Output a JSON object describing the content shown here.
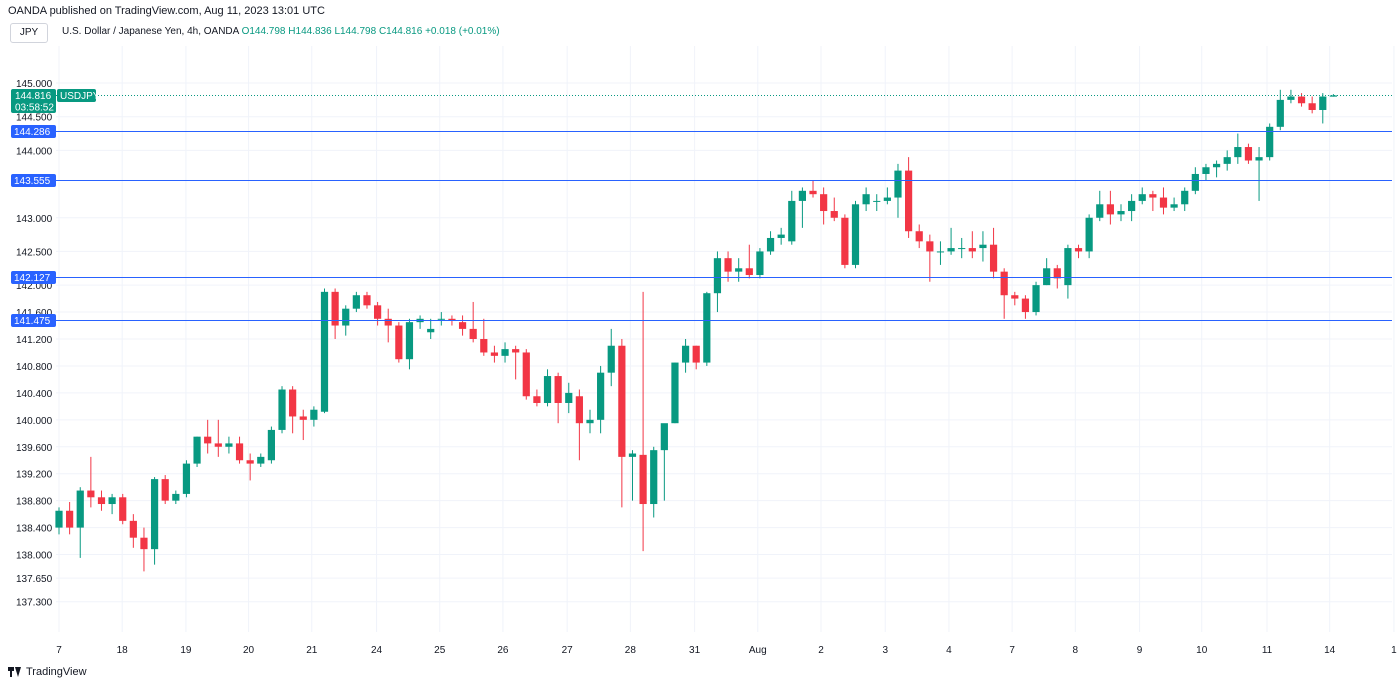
{
  "header": {
    "publisher": "OANDA published on TradingView.com, Aug 11, 2023 13:01 UTC",
    "symbol_button": "JPY",
    "instrument": "U.S. Dollar / Japanese Yen, 4h, OANDA",
    "open": "O144.798",
    "high": "H144.836",
    "low": "L144.798",
    "close": "C144.816",
    "change": "+0.018 (+0.01%)"
  },
  "footer": {
    "brand": "TradingView"
  },
  "colors": {
    "up": "#089981",
    "down": "#f23645",
    "level": "#2962ff",
    "grid": "#f0f3fa"
  },
  "chart_data": {
    "type": "candlestick",
    "title": "",
    "xlabel": "",
    "ylabel": "",
    "grid": true,
    "price_scale": "left",
    "ylim": [
      136.85,
      145.55
    ],
    "y_ticks": [
      "145.000",
      "144.500",
      "144.000",
      "143.000",
      "142.500",
      "142.000",
      "141.600",
      "141.200",
      "140.800",
      "140.400",
      "140.000",
      "139.600",
      "139.200",
      "138.800",
      "138.400",
      "138.000",
      "137.650",
      "137.300"
    ],
    "x_ticks": [
      {
        "label": "7",
        "bar": 0
      },
      {
        "label": "18",
        "bar": 5.95
      },
      {
        "label": "19",
        "bar": 11.95
      },
      {
        "label": "20",
        "bar": 17.85
      },
      {
        "label": "21",
        "bar": 23.8
      },
      {
        "label": "24",
        "bar": 29.9
      },
      {
        "label": "25",
        "bar": 35.85
      },
      {
        "label": "26",
        "bar": 41.8
      },
      {
        "label": "27",
        "bar": 47.85
      },
      {
        "label": "28",
        "bar": 53.8
      },
      {
        "label": "31",
        "bar": 59.85
      },
      {
        "label": "Aug",
        "bar": 65.8
      },
      {
        "label": "2",
        "bar": 71.75
      },
      {
        "label": "3",
        "bar": 77.8
      },
      {
        "label": "4",
        "bar": 83.8
      },
      {
        "label": "7",
        "bar": 89.75
      },
      {
        "label": "8",
        "bar": 95.7
      },
      {
        "label": "9",
        "bar": 101.75
      },
      {
        "label": "10",
        "bar": 107.6
      },
      {
        "label": "11",
        "bar": 113.75
      },
      {
        "label": "14",
        "bar": 119.65
      },
      {
        "label": "1",
        "bar": 125.7
      }
    ],
    "levels": [
      {
        "value": 144.286,
        "label": "144.286"
      },
      {
        "value": 143.555,
        "label": "143.555"
      },
      {
        "value": 142.127,
        "label": "142.127"
      },
      {
        "value": 141.475,
        "label": "141.475"
      }
    ],
    "last_price": {
      "value": 144.816,
      "label": "144.816",
      "countdown": "03:58:52",
      "symbol": "USDJPY"
    },
    "ohlc": [
      [
        138.4,
        138.7,
        138.3,
        138.65
      ],
      [
        138.65,
        138.78,
        138.3,
        138.4
      ],
      [
        138.4,
        139.0,
        137.95,
        138.95
      ],
      [
        138.95,
        139.45,
        138.7,
        138.85
      ],
      [
        138.85,
        138.95,
        138.65,
        138.75
      ],
      [
        138.75,
        138.9,
        138.6,
        138.85
      ],
      [
        138.85,
        138.9,
        138.45,
        138.5
      ],
      [
        138.5,
        138.6,
        138.1,
        138.25
      ],
      [
        138.25,
        138.4,
        137.75,
        138.08
      ],
      [
        138.08,
        139.15,
        137.85,
        139.12
      ],
      [
        139.12,
        139.18,
        138.75,
        138.8
      ],
      [
        138.8,
        138.95,
        138.75,
        138.9
      ],
      [
        138.9,
        139.4,
        138.85,
        139.35
      ],
      [
        139.35,
        139.75,
        139.3,
        139.75
      ],
      [
        139.75,
        140.0,
        139.5,
        139.65
      ],
      [
        139.65,
        140.0,
        139.45,
        139.6
      ],
      [
        139.6,
        139.75,
        139.5,
        139.65
      ],
      [
        139.65,
        139.75,
        139.35,
        139.4
      ],
      [
        139.4,
        139.5,
        139.1,
        139.35
      ],
      [
        139.35,
        139.5,
        139.3,
        139.45
      ],
      [
        139.4,
        139.9,
        139.35,
        139.85
      ],
      [
        139.85,
        140.5,
        139.8,
        140.45
      ],
      [
        140.45,
        140.5,
        139.8,
        140.05
      ],
      [
        140.05,
        140.15,
        139.7,
        140.0
      ],
      [
        140.0,
        140.2,
        139.9,
        140.15
      ],
      [
        140.12,
        141.95,
        140.1,
        141.9
      ],
      [
        141.9,
        141.95,
        141.2,
        141.4
      ],
      [
        141.4,
        141.7,
        141.25,
        141.65
      ],
      [
        141.65,
        141.9,
        141.6,
        141.85
      ],
      [
        141.85,
        141.9,
        141.65,
        141.7
      ],
      [
        141.7,
        141.75,
        141.4,
        141.5
      ],
      [
        141.5,
        141.65,
        141.15,
        141.4
      ],
      [
        141.4,
        141.45,
        140.85,
        140.9
      ],
      [
        140.9,
        141.5,
        140.75,
        141.45
      ],
      [
        141.45,
        141.55,
        141.35,
        141.5
      ],
      [
        141.3,
        141.5,
        141.2,
        141.35
      ],
      [
        141.5,
        141.6,
        141.4,
        141.5
      ],
      [
        141.5,
        141.55,
        141.4,
        141.48
      ],
      [
        141.45,
        141.55,
        141.25,
        141.35
      ],
      [
        141.35,
        141.75,
        141.15,
        141.2
      ],
      [
        141.2,
        141.5,
        140.95,
        141.0
      ],
      [
        141.0,
        141.1,
        140.85,
        140.95
      ],
      [
        140.95,
        141.15,
        140.85,
        141.05
      ],
      [
        141.05,
        141.1,
        140.6,
        141.0
      ],
      [
        141.0,
        141.05,
        140.3,
        140.35
      ],
      [
        140.35,
        140.45,
        140.2,
        140.25
      ],
      [
        140.25,
        140.75,
        140.2,
        140.65
      ],
      [
        140.65,
        140.7,
        139.95,
        140.25
      ],
      [
        140.25,
        140.55,
        140.1,
        140.4
      ],
      [
        140.35,
        140.45,
        139.4,
        139.95
      ],
      [
        139.95,
        140.15,
        139.8,
        140.0
      ],
      [
        140.0,
        140.8,
        139.8,
        140.7
      ],
      [
        140.7,
        141.35,
        140.5,
        141.1
      ],
      [
        141.1,
        141.2,
        138.7,
        139.45
      ],
      [
        139.45,
        139.55,
        138.8,
        139.5
      ],
      [
        139.48,
        141.9,
        138.05,
        138.75
      ],
      [
        138.75,
        139.6,
        138.55,
        139.55
      ],
      [
        139.55,
        139.9,
        138.8,
        139.95
      ],
      [
        139.95,
        140.85,
        139.95,
        140.85
      ],
      [
        140.85,
        141.2,
        140.7,
        141.1
      ],
      [
        141.1,
        141.1,
        140.75,
        140.85
      ],
      [
        140.85,
        141.9,
        140.8,
        141.88
      ],
      [
        141.88,
        142.5,
        141.6,
        142.4
      ],
      [
        142.4,
        142.5,
        142.05,
        142.2
      ],
      [
        142.2,
        142.4,
        142.05,
        142.25
      ],
      [
        142.25,
        142.6,
        142.1,
        142.15
      ],
      [
        142.15,
        142.55,
        142.1,
        142.5
      ],
      [
        142.5,
        142.8,
        142.45,
        142.7
      ],
      [
        142.7,
        142.85,
        142.6,
        142.75
      ],
      [
        142.65,
        143.4,
        142.6,
        143.25
      ],
      [
        143.25,
        143.45,
        142.85,
        143.4
      ],
      [
        143.4,
        143.55,
        143.3,
        143.35
      ],
      [
        143.35,
        143.45,
        142.9,
        143.1
      ],
      [
        143.1,
        143.3,
        142.95,
        143.0
      ],
      [
        143.0,
        143.05,
        142.25,
        142.3
      ],
      [
        142.3,
        143.25,
        142.25,
        143.2
      ],
      [
        143.2,
        143.45,
        143.1,
        143.35
      ],
      [
        143.25,
        143.35,
        143.1,
        143.25
      ],
      [
        143.25,
        143.45,
        143.2,
        143.3
      ],
      [
        143.3,
        143.8,
        143.0,
        143.7
      ],
      [
        143.7,
        143.9,
        142.7,
        142.8
      ],
      [
        142.8,
        142.9,
        142.55,
        142.65
      ],
      [
        142.65,
        142.75,
        142.05,
        142.5
      ],
      [
        142.5,
        142.65,
        142.3,
        142.5
      ],
      [
        142.5,
        142.85,
        142.45,
        142.55
      ],
      [
        142.55,
        142.7,
        142.4,
        142.55
      ],
      [
        142.55,
        142.8,
        142.4,
        142.5
      ],
      [
        142.55,
        142.8,
        142.35,
        142.6
      ],
      [
        142.6,
        142.85,
        142.1,
        142.2
      ],
      [
        142.2,
        142.25,
        141.5,
        141.85
      ],
      [
        141.85,
        141.9,
        141.7,
        141.8
      ],
      [
        141.8,
        141.85,
        141.5,
        141.6
      ],
      [
        141.6,
        142.05,
        141.55,
        142.0
      ],
      [
        142.0,
        142.4,
        142.0,
        142.25
      ],
      [
        142.25,
        142.3,
        141.95,
        142.1
      ],
      [
        142.0,
        142.6,
        141.8,
        142.55
      ],
      [
        142.55,
        142.6,
        142.4,
        142.5
      ],
      [
        142.5,
        143.05,
        142.4,
        143.0
      ],
      [
        143.0,
        143.4,
        142.95,
        143.2
      ],
      [
        143.2,
        143.4,
        142.9,
        143.05
      ],
      [
        143.05,
        143.2,
        142.95,
        143.1
      ],
      [
        143.1,
        143.35,
        142.95,
        143.25
      ],
      [
        143.25,
        143.45,
        143.2,
        143.35
      ],
      [
        143.35,
        143.4,
        143.1,
        143.3
      ],
      [
        143.3,
        143.45,
        143.05,
        143.15
      ],
      [
        143.15,
        143.3,
        143.1,
        143.2
      ],
      [
        143.2,
        143.45,
        143.1,
        143.4
      ],
      [
        143.4,
        143.75,
        143.35,
        143.65
      ],
      [
        143.65,
        143.8,
        143.55,
        143.75
      ],
      [
        143.75,
        143.85,
        143.6,
        143.8
      ],
      [
        143.8,
        144.0,
        143.7,
        143.9
      ],
      [
        143.9,
        144.25,
        143.8,
        144.05
      ],
      [
        144.05,
        144.1,
        143.8,
        143.85
      ],
      [
        143.85,
        144.05,
        143.25,
        143.9
      ],
      [
        143.9,
        144.4,
        143.85,
        144.35
      ],
      [
        144.35,
        144.9,
        144.3,
        144.75
      ],
      [
        144.75,
        144.9,
        144.7,
        144.8
      ],
      [
        144.8,
        144.85,
        144.65,
        144.7
      ],
      [
        144.7,
        144.8,
        144.55,
        144.6
      ],
      [
        144.6,
        144.85,
        144.4,
        144.8
      ],
      [
        144.798,
        144.836,
        144.798,
        144.816
      ]
    ]
  }
}
